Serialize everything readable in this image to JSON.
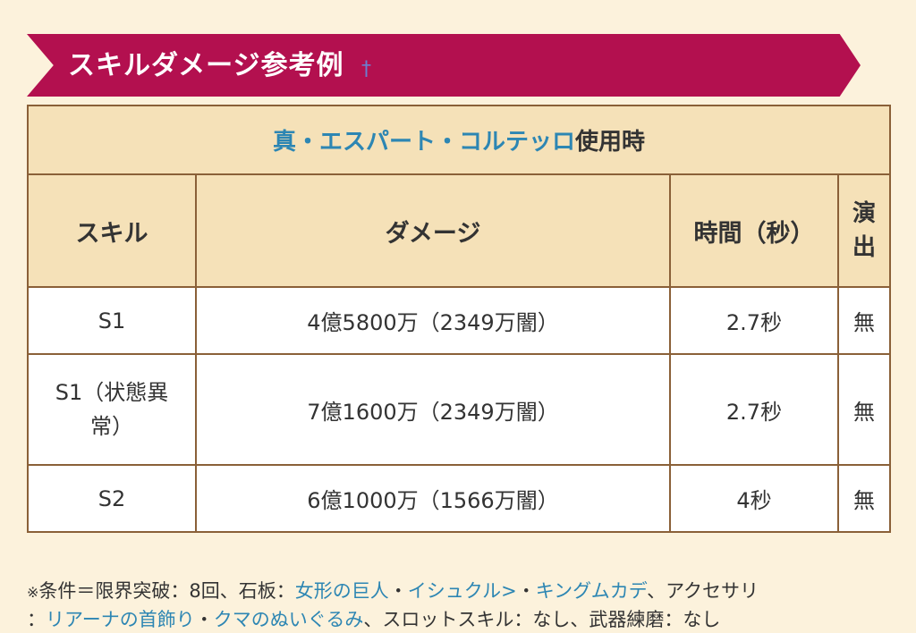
{
  "header": {
    "title": "スキルダメージ参考例",
    "dagger": "†"
  },
  "table": {
    "caption": {
      "link_text": "真・エスパート・コルテッロ",
      "suffix": "使用時"
    },
    "columns": [
      "スキル",
      "ダメージ",
      "時間（秒）",
      "演出"
    ],
    "columns_narrow_split": [
      "演",
      "出"
    ],
    "rows": [
      {
        "skill": "S1",
        "damage": "4億5800万（2349万闇）",
        "time": "2.7秒",
        "effect": "無"
      },
      {
        "skill_line1": "S1（状態異",
        "skill_line2": "常）",
        "damage": "7億1600万（2349万闇）",
        "time": "2.7秒",
        "effect": "無"
      },
      {
        "skill": "S2",
        "damage": "6億1000万（1566万闇）",
        "time": "4秒",
        "effect": "無"
      }
    ]
  },
  "note": {
    "mark": "※",
    "p1": "条件＝限界突破：8回、石板：",
    "link1": "女形の巨人",
    "sep1": "・",
    "link2": "イシュクル>",
    "sep2": "・",
    "link3": "キングムカデ",
    "p2": "、アクセサリ",
    "p3": "：",
    "link4": "リアーナの首飾り",
    "sep3": "・",
    "link5": "クマのぬいぐるみ",
    "p4": "、スロットスキル：なし、武器練磨：なし"
  },
  "colors": {
    "background": "#fcf2dc",
    "banner": "#b3104f",
    "table_header": "#f5e1b8",
    "border": "#8a6038",
    "link": "#2d86b3"
  }
}
